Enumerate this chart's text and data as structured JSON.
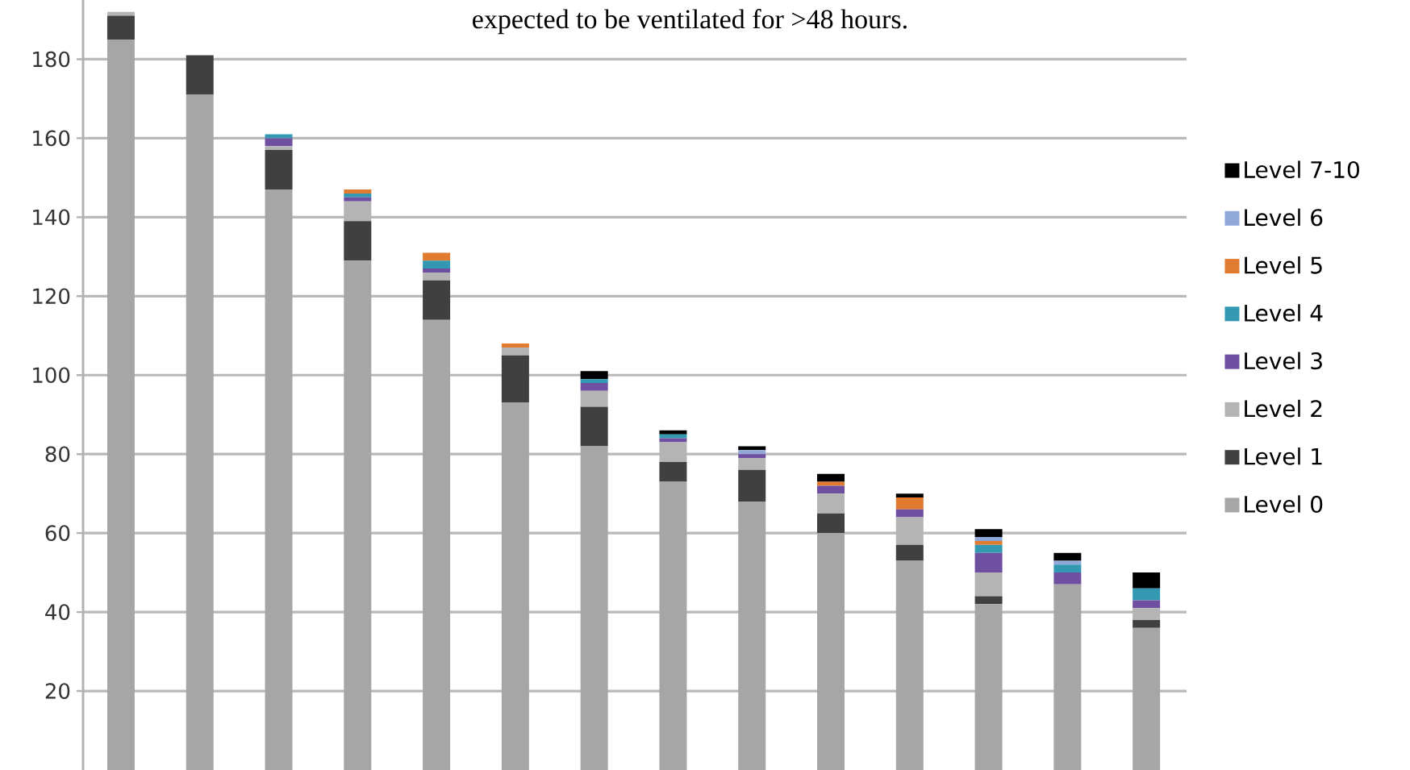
{
  "chart_data": {
    "type": "bar",
    "stacked": true,
    "annotations": [
      "expected to be ventilated for >48 hours."
    ],
    "categories": [
      null,
      null,
      null,
      null,
      null,
      null,
      null,
      null,
      null,
      null,
      null,
      null,
      null,
      null
    ],
    "series": [
      {
        "name": "Level 0",
        "color": "#a6a6a6",
        "values": [
          185,
          171,
          147,
          129,
          114,
          93,
          82,
          73,
          68,
          60,
          53,
          42,
          47,
          36
        ]
      },
      {
        "name": "Level 1",
        "color": "#404040",
        "values": [
          6,
          10,
          10,
          10,
          10,
          12,
          10,
          5,
          8,
          5,
          4,
          2,
          null,
          2
        ]
      },
      {
        "name": "Level 2",
        "color": "#b4b4b4",
        "values": [
          1,
          null,
          1,
          5,
          2,
          2,
          4,
          5,
          3,
          5,
          7,
          6,
          null,
          3
        ]
      },
      {
        "name": "Level 3",
        "color": "#6f4f9f",
        "values": [
          null,
          null,
          2,
          1,
          1,
          null,
          2,
          1,
          1,
          2,
          2,
          5,
          3,
          2
        ]
      },
      {
        "name": "Level 4",
        "color": "#3399b3",
        "values": [
          null,
          null,
          1,
          1,
          2,
          null,
          1,
          1,
          null,
          null,
          null,
          2,
          2,
          3
        ]
      },
      {
        "name": "Level 5",
        "color": "#e07b30",
        "values": [
          null,
          null,
          null,
          1,
          2,
          1,
          null,
          null,
          null,
          1,
          3,
          1,
          null,
          null
        ]
      },
      {
        "name": "Level 6",
        "color": "#8fa8d8",
        "values": [
          null,
          null,
          null,
          null,
          null,
          null,
          null,
          null,
          1,
          null,
          null,
          1,
          1,
          null
        ]
      },
      {
        "name": "Level 7-10",
        "color": "#000000",
        "values": [
          null,
          null,
          null,
          null,
          null,
          null,
          2,
          1,
          1,
          2,
          1,
          2,
          2,
          4
        ]
      }
    ],
    "ylim": [
      0,
      195
    ],
    "yticks": [
      20,
      40,
      60,
      80,
      100,
      120,
      140,
      160,
      180
    ],
    "grid": "y",
    "legend": "right"
  }
}
